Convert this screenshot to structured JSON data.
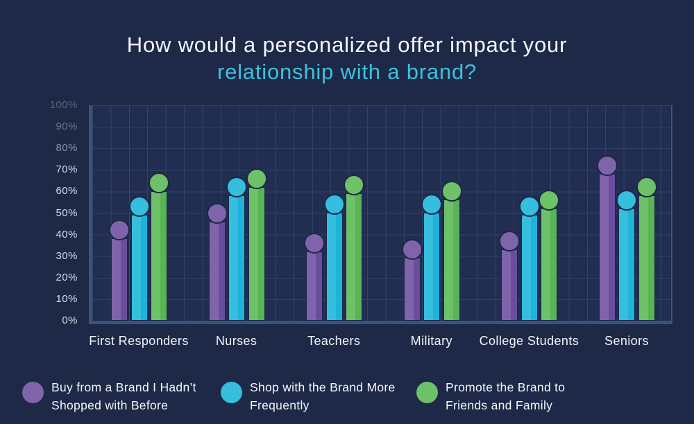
{
  "title": {
    "line1": "How would a personalized offer impact your",
    "line2": "relationship with a brand?"
  },
  "y_axis": {
    "labels": [
      "100%",
      "90%",
      "80%",
      "70%",
      "60%",
      "50%",
      "40%",
      "30%",
      "20%",
      "10%",
      "0%"
    ]
  },
  "chart_data": {
    "type": "bar",
    "title": "How would a personalized offer impact your relationship with a brand?",
    "categories": [
      "First Responders",
      "Nurses",
      "Teachers",
      "Military",
      "College Students",
      "Seniors"
    ],
    "series": [
      {
        "name": "Buy from a Brand I Hadn’t Shopped with Before",
        "color": "#8064ab",
        "color_dark": "#6a4e9d",
        "values": [
          42,
          50,
          36,
          33,
          37,
          72
        ]
      },
      {
        "name": "Shop with the Brand More Frequently",
        "color": "#35bedd",
        "color_dark": "#1db4d9",
        "values": [
          53,
          62,
          54,
          54,
          53,
          56
        ]
      },
      {
        "name": "Promote the Brand to Friends and Family",
        "color": "#6dc167",
        "color_dark": "#5ab356",
        "values": [
          64,
          66,
          63,
          60,
          56,
          62
        ]
      }
    ],
    "xlabel": "",
    "ylabel": "",
    "ylim": [
      0,
      100
    ],
    "ytick_step": 10,
    "grid": true,
    "legend_position": "bottom"
  },
  "legend": {
    "items": [
      {
        "line1": "Buy from a Brand I Hadn’t",
        "line2": "Shopped with Before",
        "color": "#8064ab"
      },
      {
        "line1": "Shop with the Brand More",
        "line2": "Frequently",
        "color": "#35bedd"
      },
      {
        "line1": "Promote the Brand to",
        "line2": "Friends and Family",
        "color": "#6dc167"
      }
    ]
  },
  "colors": {
    "background": "#1e2947",
    "plot_background": "#212e52",
    "grid": "#30426c",
    "axis": "#3b5377",
    "outline": "#1c2849",
    "title_text": "#f5f7fb",
    "title_accent": "#3ec1e0"
  }
}
